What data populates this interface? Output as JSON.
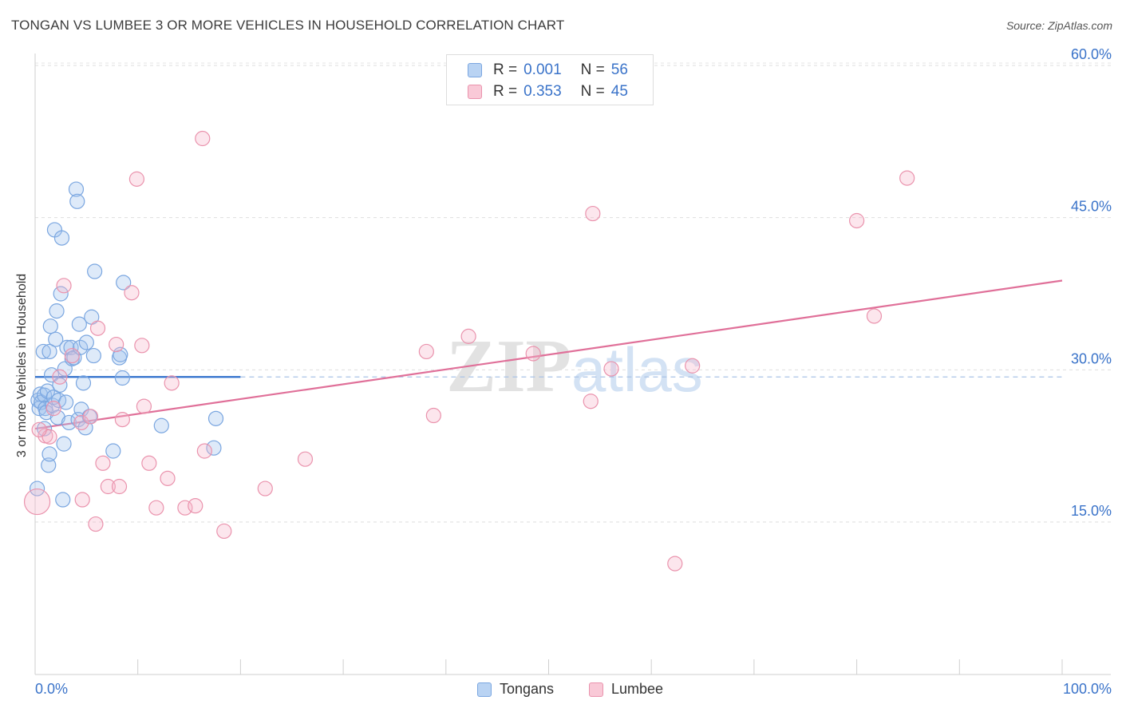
{
  "title": "TONGAN VS LUMBEE 3 OR MORE VEHICLES IN HOUSEHOLD CORRELATION CHART",
  "source": "Source: ZipAtlas.com",
  "watermark": "ZIPatlas",
  "legend": {
    "rows": [
      {
        "r_label": "R =",
        "r_value": "0.001",
        "n_label": "N =",
        "n_value": "56",
        "color": "#7aa6e0"
      },
      {
        "r_label": "R =",
        "r_value": "0.353",
        "n_label": "N =",
        "n_value": "45",
        "color": "#ea93ad"
      }
    ]
  },
  "bottom_legend": [
    {
      "label": "Tongans",
      "color": "#7aa6e0"
    },
    {
      "label": "Lumbee",
      "color": "#ea93ad"
    }
  ],
  "chart_data": {
    "type": "scatter",
    "title": "TONGAN VS LUMBEE 3 OR MORE VEHICLES IN HOUSEHOLD CORRELATION CHART",
    "xlabel": "",
    "ylabel": "3 or more Vehicles in Household",
    "xlim": [
      0,
      100
    ],
    "ylim": [
      0,
      62
    ],
    "x_tick_labels": [
      "0.0%",
      "100.0%"
    ],
    "y_ticks": [
      15,
      30,
      45,
      60
    ],
    "y_tick_labels": [
      "15.0%",
      "30.0%",
      "45.0%",
      "60.0%"
    ],
    "grid": true,
    "legend_position": "top-center",
    "series": [
      {
        "name": "Tongans",
        "color": "#7aa6e0",
        "trend": {
          "x0": 0,
          "y0": 29.3,
          "x1": 20,
          "y1": 29.3,
          "dashed_to": 100
        },
        "points": [
          [
            0.3,
            27.0
          ],
          [
            0.4,
            26.2
          ],
          [
            0.5,
            27.6
          ],
          [
            0.6,
            26.8
          ],
          [
            0.8,
            31.8
          ],
          [
            0.9,
            27.5
          ],
          [
            1.0,
            26.2
          ],
          [
            1.1,
            25.8
          ],
          [
            1.2,
            27.9
          ],
          [
            1.3,
            20.6
          ],
          [
            1.4,
            21.7
          ],
          [
            1.5,
            34.3
          ],
          [
            1.6,
            29.5
          ],
          [
            1.7,
            26.5
          ],
          [
            1.8,
            27.3
          ],
          [
            1.9,
            43.8
          ],
          [
            2.0,
            33.0
          ],
          [
            2.1,
            35.8
          ],
          [
            2.2,
            25.3
          ],
          [
            2.3,
            27.0
          ],
          [
            2.4,
            28.5
          ],
          [
            2.5,
            37.5
          ],
          [
            2.6,
            43.0
          ],
          [
            2.7,
            17.2
          ],
          [
            2.8,
            22.7
          ],
          [
            2.9,
            30.1
          ],
          [
            3.0,
            26.8
          ],
          [
            3.1,
            32.2
          ],
          [
            3.3,
            24.8
          ],
          [
            3.5,
            32.2
          ],
          [
            3.6,
            31.1
          ],
          [
            3.8,
            31.2
          ],
          [
            4.0,
            47.8
          ],
          [
            4.1,
            46.6
          ],
          [
            4.2,
            25.1
          ],
          [
            4.3,
            34.5
          ],
          [
            4.4,
            32.2
          ],
          [
            4.5,
            26.1
          ],
          [
            4.7,
            28.7
          ],
          [
            4.9,
            24.3
          ],
          [
            5.0,
            32.7
          ],
          [
            5.3,
            25.4
          ],
          [
            5.5,
            35.2
          ],
          [
            5.7,
            31.4
          ],
          [
            5.8,
            39.7
          ],
          [
            7.6,
            22.0
          ],
          [
            8.2,
            31.2
          ],
          [
            8.3,
            31.5
          ],
          [
            8.5,
            29.2
          ],
          [
            8.6,
            38.6
          ],
          [
            12.3,
            24.5
          ],
          [
            17.4,
            22.3
          ],
          [
            17.6,
            25.2
          ],
          [
            0.2,
            18.3
          ],
          [
            0.9,
            24.2
          ],
          [
            1.4,
            31.8
          ]
        ]
      },
      {
        "name": "Lumbee",
        "color": "#ea93ad",
        "trend": {
          "x0": 0,
          "y0": 24.2,
          "x1": 100,
          "y1": 38.8
        },
        "points": [
          [
            0.2,
            17.0
          ],
          [
            1.0,
            23.5
          ],
          [
            1.4,
            23.4
          ],
          [
            1.8,
            26.2
          ],
          [
            2.4,
            29.3
          ],
          [
            2.8,
            38.3
          ],
          [
            3.6,
            31.4
          ],
          [
            4.5,
            24.8
          ],
          [
            4.6,
            17.2
          ],
          [
            5.4,
            25.4
          ],
          [
            5.9,
            14.8
          ],
          [
            6.1,
            34.1
          ],
          [
            6.6,
            20.8
          ],
          [
            7.1,
            18.5
          ],
          [
            7.9,
            32.5
          ],
          [
            8.2,
            18.5
          ],
          [
            8.5,
            25.1
          ],
          [
            9.4,
            37.6
          ],
          [
            9.9,
            48.8
          ],
          [
            10.4,
            32.4
          ],
          [
            10.6,
            26.4
          ],
          [
            11.1,
            20.8
          ],
          [
            11.8,
            16.4
          ],
          [
            12.9,
            19.3
          ],
          [
            13.3,
            28.7
          ],
          [
            14.6,
            16.4
          ],
          [
            15.6,
            16.6
          ],
          [
            16.3,
            52.8
          ],
          [
            16.5,
            22.0
          ],
          [
            18.4,
            14.1
          ],
          [
            22.4,
            18.3
          ],
          [
            26.3,
            21.2
          ],
          [
            38.1,
            31.8
          ],
          [
            38.8,
            25.5
          ],
          [
            42.2,
            33.3
          ],
          [
            48.5,
            31.6
          ],
          [
            54.1,
            26.9
          ],
          [
            54.3,
            45.4
          ],
          [
            56.1,
            30.1
          ],
          [
            62.3,
            10.9
          ],
          [
            64.0,
            30.4
          ],
          [
            80.0,
            44.7
          ],
          [
            81.7,
            35.3
          ],
          [
            84.9,
            48.9
          ],
          [
            0.4,
            24.1
          ]
        ]
      }
    ]
  }
}
